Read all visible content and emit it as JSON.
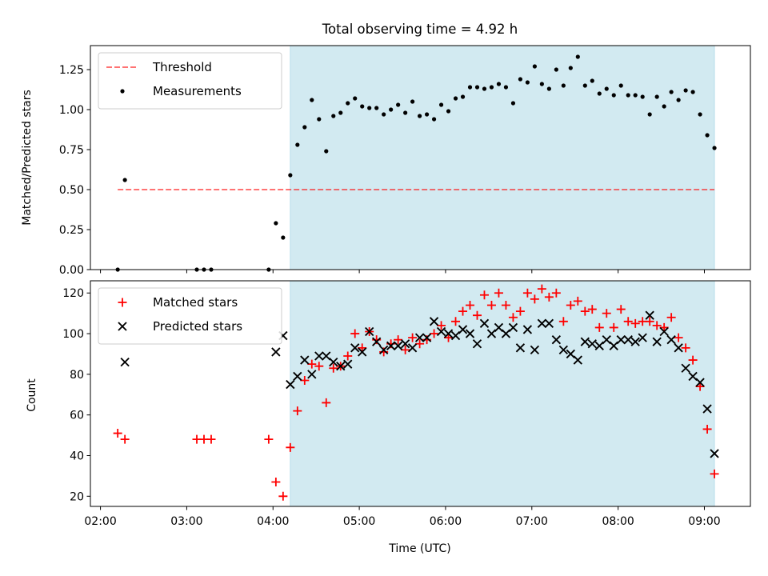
{
  "colors": {
    "shade": "#add8e6",
    "threshold": "#ff0000",
    "measurement": "#000000",
    "matched": "#ff0000",
    "predicted": "#000000"
  },
  "chart_data": [
    {
      "type": "scatter",
      "title": "Total observing time = 4.92 h",
      "xlabel": "",
      "ylabel": "Matched/Predicted stars",
      "ylim": [
        0,
        1.4
      ],
      "yticks": [
        0.0,
        0.25,
        0.5,
        0.75,
        1.0,
        1.25
      ],
      "ytick_labels": [
        "0.00",
        "0.25",
        "0.50",
        "0.75",
        "1.00",
        "1.25"
      ],
      "xlim": [
        "01:53",
        "09:32"
      ],
      "xticks": [
        "02:00",
        "03:00",
        "04:00",
        "05:00",
        "06:00",
        "07:00",
        "08:00",
        "09:00"
      ],
      "xtick_labels": [
        "",
        "",
        "",
        "",
        "",
        "",
        "",
        ""
      ],
      "shaded_interval": [
        "04:12",
        "09:07"
      ],
      "legend_position": "upper-left",
      "threshold": {
        "name": "Threshold",
        "value": 0.5,
        "x_range": [
          "02:12",
          "09:07"
        ],
        "style": "dashed"
      },
      "series": [
        {
          "name": "Measurements",
          "marker": "dot",
          "points": [
            [
              "02:12",
              0.0
            ],
            [
              "02:17",
              0.56
            ],
            [
              "03:07",
              0.0
            ],
            [
              "03:12",
              0.0
            ],
            [
              "03:17",
              0.0
            ],
            [
              "03:57",
              0.0
            ],
            [
              "04:02",
              0.29
            ],
            [
              "04:07",
              0.2
            ],
            [
              "04:12",
              0.59
            ],
            [
              "04:17",
              0.78
            ],
            [
              "04:22",
              0.89
            ],
            [
              "04:27",
              1.06
            ],
            [
              "04:32",
              0.94
            ],
            [
              "04:37",
              0.74
            ],
            [
              "04:42",
              0.96
            ],
            [
              "04:47",
              0.98
            ],
            [
              "04:52",
              1.04
            ],
            [
              "04:57",
              1.07
            ],
            [
              "05:02",
              1.02
            ],
            [
              "05:07",
              1.01
            ],
            [
              "05:12",
              1.01
            ],
            [
              "05:17",
              0.97
            ],
            [
              "05:22",
              1.0
            ],
            [
              "05:27",
              1.03
            ],
            [
              "05:32",
              0.98
            ],
            [
              "05:37",
              1.05
            ],
            [
              "05:42",
              0.96
            ],
            [
              "05:47",
              0.97
            ],
            [
              "05:52",
              0.94
            ],
            [
              "05:57",
              1.03
            ],
            [
              "06:02",
              0.99
            ],
            [
              "06:07",
              1.07
            ],
            [
              "06:12",
              1.08
            ],
            [
              "06:17",
              1.14
            ],
            [
              "06:22",
              1.14
            ],
            [
              "06:27",
              1.13
            ],
            [
              "06:32",
              1.14
            ],
            [
              "06:37",
              1.16
            ],
            [
              "06:42",
              1.14
            ],
            [
              "06:47",
              1.04
            ],
            [
              "06:52",
              1.19
            ],
            [
              "06:57",
              1.17
            ],
            [
              "07:02",
              1.27
            ],
            [
              "07:07",
              1.16
            ],
            [
              "07:12",
              1.13
            ],
            [
              "07:17",
              1.25
            ],
            [
              "07:22",
              1.15
            ],
            [
              "07:27",
              1.26
            ],
            [
              "07:32",
              1.33
            ],
            [
              "07:37",
              1.15
            ],
            [
              "07:42",
              1.18
            ],
            [
              "07:47",
              1.1
            ],
            [
              "07:52",
              1.13
            ],
            [
              "07:57",
              1.09
            ],
            [
              "08:02",
              1.15
            ],
            [
              "08:07",
              1.09
            ],
            [
              "08:12",
              1.09
            ],
            [
              "08:17",
              1.08
            ],
            [
              "08:22",
              0.97
            ],
            [
              "08:27",
              1.08
            ],
            [
              "08:32",
              1.02
            ],
            [
              "08:37",
              1.11
            ],
            [
              "08:42",
              1.06
            ],
            [
              "08:47",
              1.12
            ],
            [
              "08:52",
              1.11
            ],
            [
              "08:57",
              0.97
            ],
            [
              "09:02",
              0.84
            ],
            [
              "09:07",
              0.76
            ]
          ]
        }
      ]
    },
    {
      "type": "scatter",
      "title": "",
      "xlabel": "Time (UTC)",
      "ylabel": "Count",
      "ylim": [
        15,
        126
      ],
      "yticks": [
        20,
        40,
        60,
        80,
        100,
        120
      ],
      "ytick_labels": [
        "20",
        "40",
        "60",
        "80",
        "100",
        "120"
      ],
      "xlim": [
        "01:53",
        "09:32"
      ],
      "xticks": [
        "02:00",
        "03:00",
        "04:00",
        "05:00",
        "06:00",
        "07:00",
        "08:00",
        "09:00"
      ],
      "xtick_labels": [
        "02:00",
        "03:00",
        "04:00",
        "05:00",
        "06:00",
        "07:00",
        "08:00",
        "09:00"
      ],
      "shaded_interval": [
        "04:12",
        "09:07"
      ],
      "legend_position": "upper-left",
      "series": [
        {
          "name": "Matched stars",
          "marker": "plus",
          "points": [
            [
              "02:12",
              51
            ],
            [
              "02:17",
              48
            ],
            [
              "03:07",
              48
            ],
            [
              "03:12",
              48
            ],
            [
              "03:17",
              48
            ],
            [
              "03:57",
              48
            ],
            [
              "04:02",
              27
            ],
            [
              "04:07",
              20
            ],
            [
              "04:12",
              44
            ],
            [
              "04:17",
              62
            ],
            [
              "04:22",
              77
            ],
            [
              "04:27",
              85
            ],
            [
              "04:32",
              84
            ],
            [
              "04:37",
              66
            ],
            [
              "04:42",
              83
            ],
            [
              "04:47",
              84
            ],
            [
              "04:52",
              89
            ],
            [
              "04:57",
              100
            ],
            [
              "05:02",
              93
            ],
            [
              "05:07",
              101
            ],
            [
              "05:12",
              97
            ],
            [
              "05:17",
              91
            ],
            [
              "05:22",
              95
            ],
            [
              "05:27",
              97
            ],
            [
              "05:32",
              92
            ],
            [
              "05:37",
              98
            ],
            [
              "05:42",
              95
            ],
            [
              "05:47",
              97
            ],
            [
              "05:52",
              100
            ],
            [
              "05:57",
              104
            ],
            [
              "06:02",
              98
            ],
            [
              "06:07",
              106
            ],
            [
              "06:12",
              111
            ],
            [
              "06:17",
              114
            ],
            [
              "06:22",
              109
            ],
            [
              "06:27",
              119
            ],
            [
              "06:32",
              114
            ],
            [
              "06:37",
              120
            ],
            [
              "06:42",
              114
            ],
            [
              "06:47",
              108
            ],
            [
              "06:52",
              111
            ],
            [
              "06:57",
              120
            ],
            [
              "07:02",
              117
            ],
            [
              "07:07",
              122
            ],
            [
              "07:12",
              118
            ],
            [
              "07:17",
              120
            ],
            [
              "07:22",
              106
            ],
            [
              "07:27",
              114
            ],
            [
              "07:32",
              116
            ],
            [
              "07:37",
              111
            ],
            [
              "07:42",
              112
            ],
            [
              "07:47",
              103
            ],
            [
              "07:52",
              110
            ],
            [
              "07:57",
              103
            ],
            [
              "08:02",
              112
            ],
            [
              "08:07",
              106
            ],
            [
              "08:12",
              105
            ],
            [
              "08:17",
              106
            ],
            [
              "08:22",
              106
            ],
            [
              "08:27",
              104
            ],
            [
              "08:32",
              103
            ],
            [
              "08:37",
              108
            ],
            [
              "08:42",
              98
            ],
            [
              "08:47",
              93
            ],
            [
              "08:52",
              87
            ],
            [
              "08:57",
              74
            ],
            [
              "09:02",
              53
            ],
            [
              "09:07",
              31
            ]
          ]
        },
        {
          "name": "Predicted stars",
          "marker": "x",
          "points": [
            [
              "02:17",
              86
            ],
            [
              "04:02",
              91
            ],
            [
              "04:07",
              99
            ],
            [
              "04:12",
              75
            ],
            [
              "04:17",
              79
            ],
            [
              "04:22",
              87
            ],
            [
              "04:27",
              80
            ],
            [
              "04:32",
              89
            ],
            [
              "04:37",
              89
            ],
            [
              "04:42",
              86
            ],
            [
              "04:47",
              84
            ],
            [
              "04:52",
              85
            ],
            [
              "04:57",
              93
            ],
            [
              "05:02",
              91
            ],
            [
              "05:07",
              101
            ],
            [
              "05:12",
              96
            ],
            [
              "05:17",
              92
            ],
            [
              "05:22",
              94
            ],
            [
              "05:27",
              94
            ],
            [
              "05:32",
              95
            ],
            [
              "05:37",
              93
            ],
            [
              "05:42",
              98
            ],
            [
              "05:47",
              98
            ],
            [
              "05:52",
              106
            ],
            [
              "05:57",
              101
            ],
            [
              "06:02",
              100
            ],
            [
              "06:07",
              99
            ],
            [
              "06:12",
              102
            ],
            [
              "06:17",
              100
            ],
            [
              "06:22",
              95
            ],
            [
              "06:27",
              105
            ],
            [
              "06:32",
              100
            ],
            [
              "06:37",
              103
            ],
            [
              "06:42",
              100
            ],
            [
              "06:47",
              103
            ],
            [
              "06:52",
              93
            ],
            [
              "06:57",
              102
            ],
            [
              "07:02",
              92
            ],
            [
              "07:07",
              105
            ],
            [
              "07:12",
              105
            ],
            [
              "07:17",
              97
            ],
            [
              "07:22",
              92
            ],
            [
              "07:27",
              90
            ],
            [
              "07:32",
              87
            ],
            [
              "07:37",
              96
            ],
            [
              "07:42",
              95
            ],
            [
              "07:47",
              94
            ],
            [
              "07:52",
              97
            ],
            [
              "07:57",
              94
            ],
            [
              "08:02",
              97
            ],
            [
              "08:07",
              97
            ],
            [
              "08:12",
              96
            ],
            [
              "08:17",
              98
            ],
            [
              "08:22",
              109
            ],
            [
              "08:27",
              96
            ],
            [
              "08:32",
              101
            ],
            [
              "08:37",
              97
            ],
            [
              "08:42",
              93
            ],
            [
              "08:47",
              83
            ],
            [
              "08:52",
              79
            ],
            [
              "08:57",
              76
            ],
            [
              "09:02",
              63
            ],
            [
              "09:07",
              41
            ]
          ]
        }
      ]
    }
  ]
}
